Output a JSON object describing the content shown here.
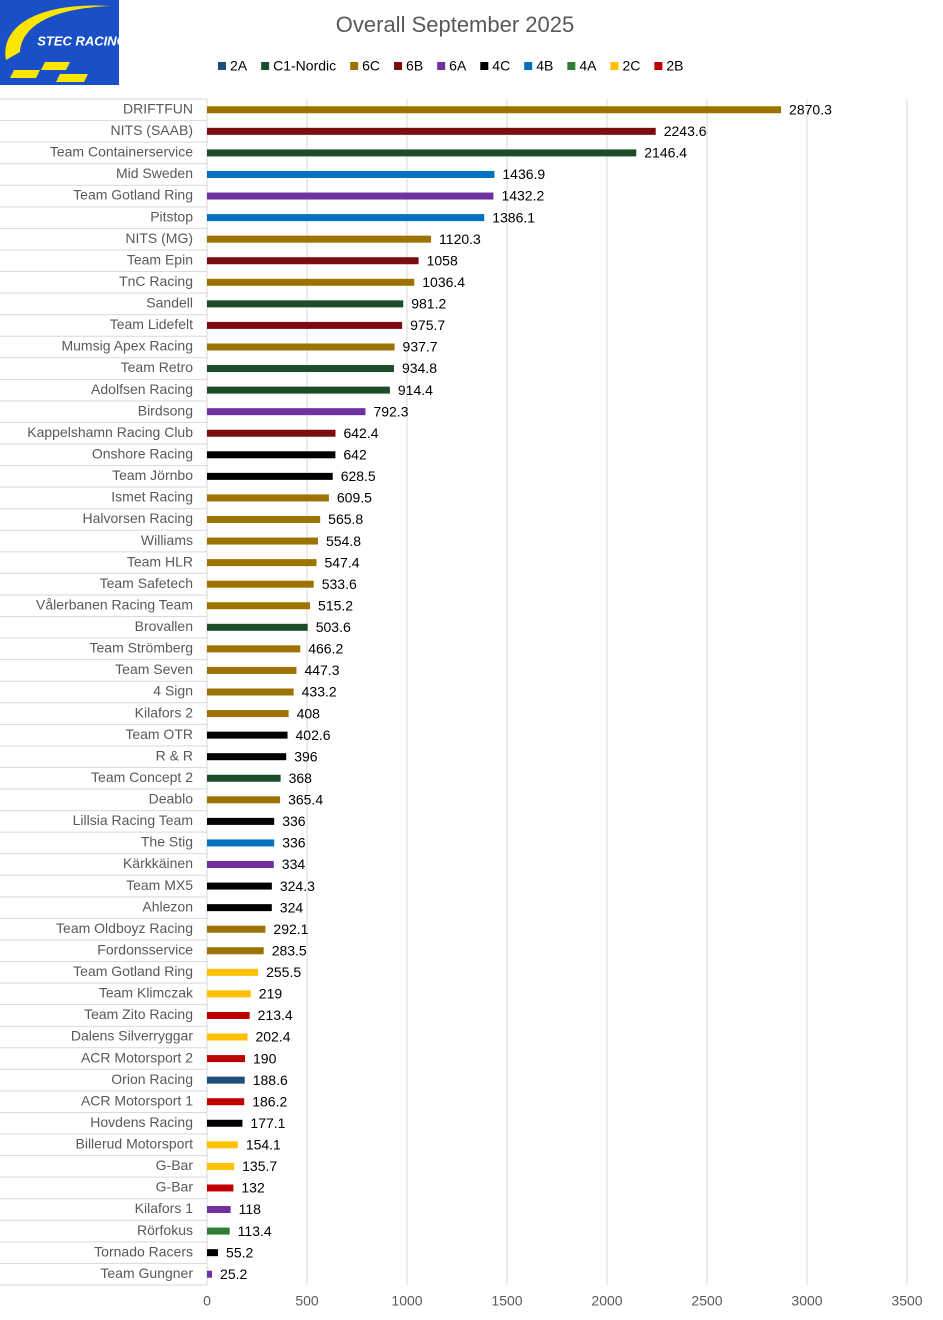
{
  "chart_data": {
    "type": "bar",
    "orientation": "horizontal",
    "title": "Overall September 2025",
    "logo_text": "STEC RACING",
    "legend": [
      {
        "name": "2A",
        "color": "#1f4e79"
      },
      {
        "name": "C1-Nordic",
        "color": "#1b4d2b"
      },
      {
        "name": "6C",
        "color": "#9c7300"
      },
      {
        "name": "6B",
        "color": "#7b0c10"
      },
      {
        "name": "6A",
        "color": "#7030a0"
      },
      {
        "name": "4C",
        "color": "#000000"
      },
      {
        "name": "4B",
        "color": "#0070c0"
      },
      {
        "name": "4A",
        "color": "#2e7d32"
      },
      {
        "name": "2C",
        "color": "#ffc000"
      },
      {
        "name": "2B",
        "color": "#c00000"
      }
    ],
    "categories": [
      "DRIFTFUN",
      "NITS (SAAB)",
      "Team Containerservice",
      "Mid Sweden",
      "Team Gotland Ring",
      "Pitstop",
      "NITS (MG)",
      "Team Epin",
      "TnC Racing",
      "Sandell",
      "Team Lidefelt",
      "Mumsig Apex Racing",
      "Team Retro",
      "Adolfsen Racing",
      "Birdsong",
      "Kappelshamn Racing Club",
      "Onshore Racing",
      "Team Jörnbo",
      "Ismet Racing",
      "Halvorsen Racing",
      "Williams",
      "Team HLR",
      "Team Safetech",
      "Vålerbanen Racing Team",
      "Brovallen",
      "Team Strömberg",
      "Team Seven",
      "4 Sign",
      "Kilafors 2",
      "Team OTR",
      "R & R",
      "Team Concept 2",
      "Deablo",
      "Lillsia Racing Team",
      "The Stig",
      "Kärkkäinen",
      "Team MX5",
      "Ahlezon",
      "Team Oldboyz Racing",
      "Fordonsservice",
      "Team Gotland Ring",
      "Team Klimczak",
      "Team Zito Racing",
      "Dalens Silverryggar",
      "ACR Motorsport 2",
      "Orion Racing",
      "ACR Motorsport 1",
      "Hovdens Racing",
      "Billerud Motorsport",
      "G-Bar",
      "G-Bar",
      "Kilafors 1",
      "Rörfokus",
      "Tornado Racers",
      "Team Gungner"
    ],
    "values": [
      2870.3,
      2243.6,
      2146.4,
      1436.9,
      1432.2,
      1386.1,
      1120.3,
      1058,
      1036.4,
      981.2,
      975.7,
      937.7,
      934.8,
      914.4,
      792.3,
      642.4,
      642,
      628.5,
      609.5,
      565.8,
      554.8,
      547.4,
      533.6,
      515.2,
      503.6,
      466.2,
      447.3,
      433.2,
      408,
      402.6,
      396,
      368,
      365.4,
      336,
      336,
      334,
      324.3,
      324,
      292.1,
      283.5,
      255.5,
      219,
      213.4,
      202.4,
      190,
      188.6,
      186.2,
      177.1,
      154.1,
      135.7,
      132,
      118,
      113.4,
      55.2,
      25.2
    ],
    "colors": [
      "#9c7300",
      "#7b0c10",
      "#1b4d2b",
      "#0070c0",
      "#7030a0",
      "#0070c0",
      "#9c7300",
      "#7b0c10",
      "#9c7300",
      "#1b4d2b",
      "#7b0c10",
      "#9c7300",
      "#1b4d2b",
      "#1b4d2b",
      "#7030a0",
      "#7b0c10",
      "#000000",
      "#000000",
      "#9c7300",
      "#9c7300",
      "#9c7300",
      "#9c7300",
      "#9c7300",
      "#9c7300",
      "#1b4d2b",
      "#9c7300",
      "#9c7300",
      "#9c7300",
      "#9c7300",
      "#000000",
      "#000000",
      "#1b4d2b",
      "#9c7300",
      "#000000",
      "#0070c0",
      "#7030a0",
      "#000000",
      "#000000",
      "#9c7300",
      "#9c7300",
      "#ffc000",
      "#ffc000",
      "#c00000",
      "#ffc000",
      "#c00000",
      "#1f4e79",
      "#c00000",
      "#000000",
      "#ffc000",
      "#ffc000",
      "#c00000",
      "#7030a0",
      "#2e7d32",
      "#000000",
      "#7030a0"
    ],
    "xlim": [
      0,
      3500
    ],
    "xticks": [
      0,
      500,
      1000,
      1500,
      2000,
      2500,
      3000,
      3500
    ],
    "grid": true
  }
}
